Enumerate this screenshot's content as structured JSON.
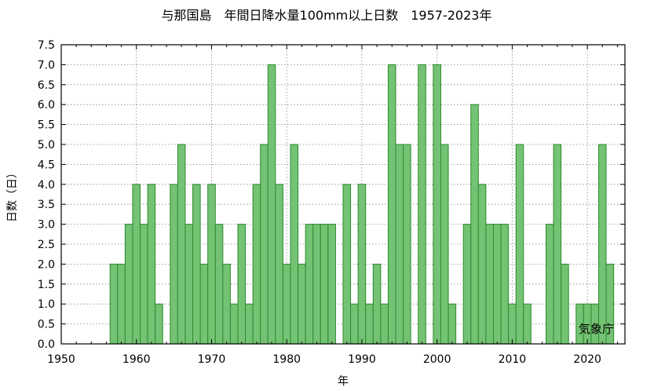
{
  "chart_data": {
    "type": "bar",
    "title": "与那国島　年間日降水量100mm以上日数　1957-2023年",
    "xlabel": "年",
    "ylabel": "日数（日）",
    "credit": "気象庁",
    "xlim": [
      1950,
      2025
    ],
    "ylim": [
      0,
      7.5
    ],
    "xticks": [
      1950,
      1960,
      1970,
      1980,
      1990,
      2000,
      2010,
      2020
    ],
    "yticks": [
      "0.0",
      "0.5",
      "1.0",
      "1.5",
      "2.0",
      "2.5",
      "3.0",
      "3.5",
      "4.0",
      "4.5",
      "5.0",
      "5.5",
      "6.0",
      "6.5",
      "7.0",
      "7.5"
    ],
    "grid": true,
    "bar_color": "#74c274",
    "bar_edge_color": "#2e8b2e",
    "x": [
      1957,
      1958,
      1959,
      1960,
      1961,
      1962,
      1963,
      1964,
      1965,
      1966,
      1967,
      1968,
      1969,
      1970,
      1971,
      1972,
      1973,
      1974,
      1975,
      1976,
      1977,
      1978,
      1979,
      1980,
      1981,
      1982,
      1983,
      1984,
      1985,
      1986,
      1987,
      1988,
      1989,
      1990,
      1991,
      1992,
      1993,
      1994,
      1995,
      1996,
      1997,
      1998,
      1999,
      2000,
      2001,
      2002,
      2003,
      2004,
      2005,
      2006,
      2007,
      2008,
      2009,
      2010,
      2011,
      2012,
      2013,
      2014,
      2015,
      2016,
      2017,
      2018,
      2019,
      2020,
      2021,
      2022,
      2023
    ],
    "values": [
      2,
      2,
      3,
      4,
      3,
      4,
      1,
      0,
      4,
      5,
      3,
      4,
      2,
      4,
      3,
      2,
      1,
      3,
      1,
      4,
      5,
      7,
      4,
      2,
      5,
      2,
      3,
      3,
      3,
      3,
      0,
      4,
      1,
      4,
      1,
      2,
      1,
      7,
      5,
      5,
      0,
      7,
      0,
      7,
      5,
      1,
      0,
      3,
      6,
      4,
      3,
      3,
      3,
      1,
      5,
      1,
      0,
      0,
      3,
      5,
      2,
      0,
      1,
      1,
      1,
      5,
      2
    ]
  }
}
